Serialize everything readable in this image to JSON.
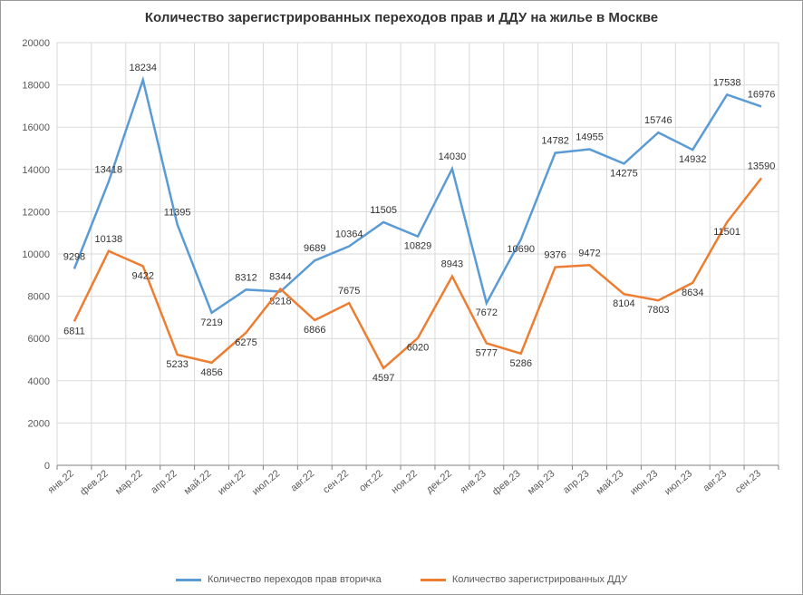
{
  "chart": {
    "type": "line",
    "title": "Количество зарегистрированных переходов прав и ДДУ на жилье в Москве",
    "title_fontsize": 15,
    "title_fontweight": "bold",
    "background_color": "#ffffff",
    "border_color": "#999999",
    "grid_color": "#d9d9d9",
    "axis_color": "#808080",
    "label_color": "#595959",
    "data_label_fontsize": 11,
    "tick_fontsize": 11,
    "line_width": 2.5,
    "ylim": [
      0,
      20000
    ],
    "ytick_step": 2000,
    "yticks": [
      0,
      2000,
      4000,
      6000,
      8000,
      10000,
      12000,
      14000,
      16000,
      18000,
      20000
    ],
    "categories": [
      "янв.22",
      "фев.22",
      "мар.22",
      "апр.22",
      "май.22",
      "июн.22",
      "июл.22",
      "авг.22",
      "сен.22",
      "окт.22",
      "ноя.22",
      "дек.22",
      "янв.23",
      "фев.23",
      "мар.23",
      "апр.23",
      "май.23",
      "июн.23",
      "июл.23",
      "авг.23",
      "сен.23"
    ],
    "series": [
      {
        "name": "Количество переходов прав вторичка",
        "color": "#5b9bd5",
        "values": [
          9298,
          13418,
          18234,
          11395,
          7219,
          8312,
          8218,
          9689,
          10364,
          11505,
          10829,
          14030,
          7672,
          10690,
          14782,
          14955,
          14275,
          15746,
          14932,
          17538,
          16976
        ],
        "label_offsets": [
          -10,
          -10,
          -10,
          -10,
          14,
          -10,
          14,
          -10,
          -10,
          -10,
          14,
          -10,
          14,
          14,
          -10,
          -10,
          14,
          -10,
          14,
          -10,
          -10
        ]
      },
      {
        "name": "Количество зарегистрированных ДДУ",
        "color": "#ed7d31",
        "values": [
          6811,
          10138,
          9422,
          5233,
          4856,
          6275,
          8344,
          6866,
          7675,
          4597,
          6020,
          8943,
          5777,
          5286,
          9376,
          9472,
          8104,
          7803,
          8634,
          11501,
          13590
        ],
        "label_offsets": [
          14,
          -10,
          14,
          14,
          14,
          14,
          -10,
          14,
          -10,
          14,
          14,
          -10,
          14,
          14,
          -10,
          -10,
          14,
          14,
          14,
          14,
          -10
        ]
      }
    ],
    "legend_position": "bottom"
  }
}
